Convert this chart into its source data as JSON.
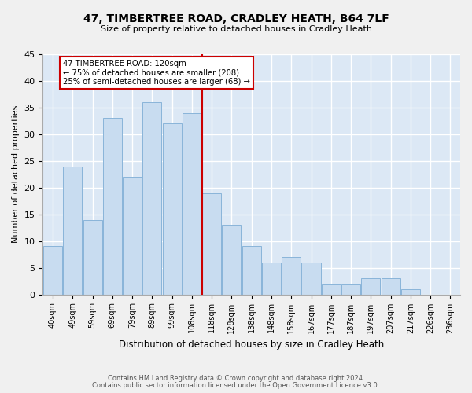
{
  "title": "47, TIMBERTREE ROAD, CRADLEY HEATH, B64 7LF",
  "subtitle": "Size of property relative to detached houses in Cradley Heath",
  "xlabel": "Distribution of detached houses by size in Cradley Heath",
  "ylabel": "Number of detached properties",
  "categories": [
    "40sqm",
    "49sqm",
    "59sqm",
    "69sqm",
    "79sqm",
    "89sqm",
    "99sqm",
    "108sqm",
    "118sqm",
    "128sqm",
    "138sqm",
    "148sqm",
    "158sqm",
    "167sqm",
    "177sqm",
    "187sqm",
    "197sqm",
    "207sqm",
    "217sqm",
    "226sqm",
    "236sqm"
  ],
  "values": [
    9,
    24,
    14,
    33,
    22,
    36,
    32,
    34,
    19,
    13,
    9,
    6,
    7,
    6,
    2,
    2,
    3,
    3,
    1,
    0,
    0
  ],
  "bar_color": "#c8dcf0",
  "bar_edge_color": "#89b4d9",
  "vline_x_index": 8,
  "vline_color": "#cc0000",
  "annotation_text": "47 TIMBERTREE ROAD: 120sqm\n← 75% of detached houses are smaller (208)\n25% of semi-detached houses are larger (68) →",
  "annotation_box_color": "#ffffff",
  "annotation_box_edge_color": "#cc0000",
  "ylim": [
    0,
    45
  ],
  "yticks": [
    0,
    5,
    10,
    15,
    20,
    25,
    30,
    35,
    40,
    45
  ],
  "footer_line1": "Contains HM Land Registry data © Crown copyright and database right 2024.",
  "footer_line2": "Contains public sector information licensed under the Open Government Licence v3.0.",
  "bg_color": "#f0f0f0",
  "plot_bg_color": "#dce8f5",
  "grid_color": "#ffffff"
}
